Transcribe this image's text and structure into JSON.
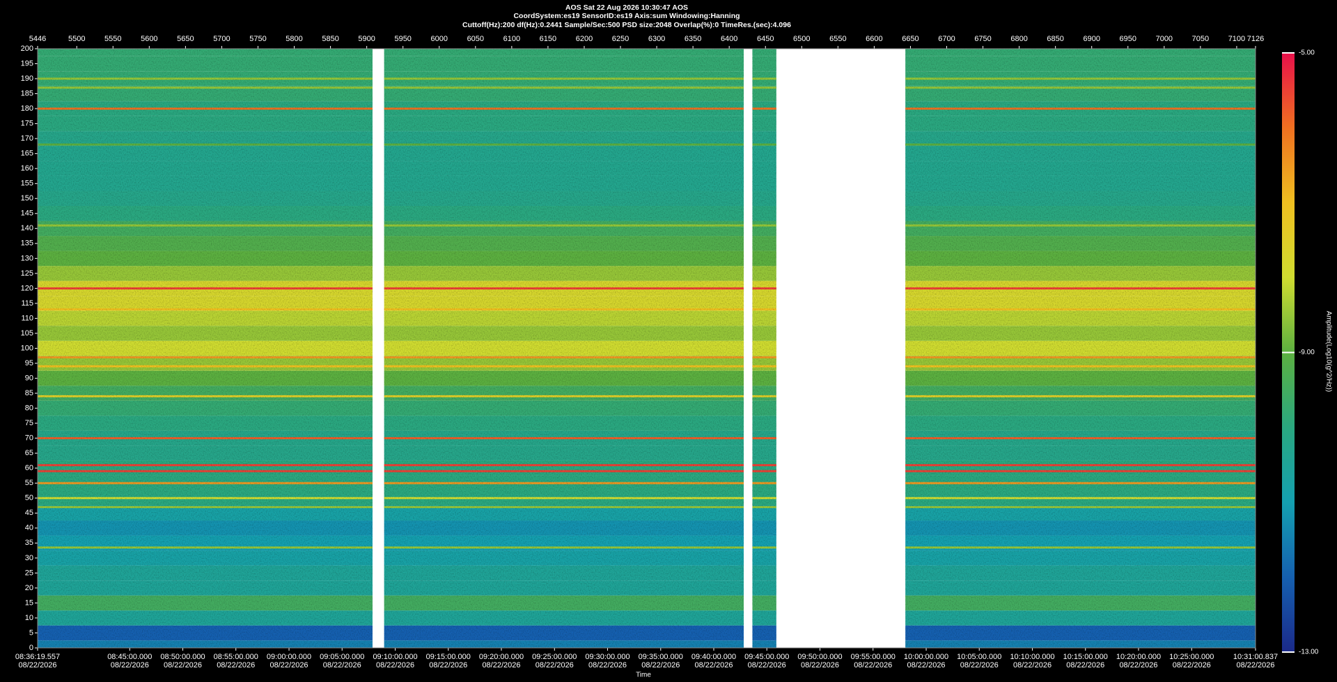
{
  "chart_data": {
    "type": "spectrogram",
    "title": "AOS  Sat 22 Aug 2026 10:30:47  AOS",
    "subtitle": "CoordSystem:es19   SensorID:es19   Axis:sum   Windowing:Hanning",
    "info": "Cuttoff(Hz):200      df(Hz):0.2441      Sample/Sec:500      PSD size:2048      Overlap(%):0      TimeRes.(sec):4.096",
    "xlabel": "Time",
    "colorbar_label": "Amplitude(Log10(g^2/Hz))",
    "xlim": [
      5446,
      7126
    ],
    "x2ticks": [
      5446,
      5500,
      5550,
      5600,
      5650,
      5700,
      5750,
      5800,
      5850,
      5900,
      5950,
      6000,
      6050,
      6100,
      6150,
      6200,
      6250,
      6300,
      6350,
      6400,
      6450,
      6500,
      6550,
      6600,
      6650,
      6700,
      6750,
      6800,
      6850,
      6900,
      6950,
      7000,
      7050,
      7100,
      7126
    ],
    "xticks": [
      {
        "value": 5446,
        "label": "08:36:19.557",
        "date": "08/22/2026"
      },
      {
        "value": 5573.1,
        "label": "08:45:00.000",
        "date": "08/22/2026"
      },
      {
        "value": 5646.3,
        "label": "08:50:00.000",
        "date": "08/22/2026"
      },
      {
        "value": 5719.5,
        "label": "08:55:00.000",
        "date": "08/22/2026"
      },
      {
        "value": 5792.8,
        "label": "09:00:00.000",
        "date": "08/22/2026"
      },
      {
        "value": 5866.0,
        "label": "09:05:00.000",
        "date": "08/22/2026"
      },
      {
        "value": 5939.3,
        "label": "09:10:00.000",
        "date": "08/22/2026"
      },
      {
        "value": 6012.5,
        "label": "09:15:00.000",
        "date": "08/22/2026"
      },
      {
        "value": 6085.7,
        "label": "09:20:00.000",
        "date": "08/22/2026"
      },
      {
        "value": 6159.0,
        "label": "09:25:00.000",
        "date": "08/22/2026"
      },
      {
        "value": 6232.2,
        "label": "09:30:00.000",
        "date": "08/22/2026"
      },
      {
        "value": 6305.5,
        "label": "09:35:00.000",
        "date": "08/22/2026"
      },
      {
        "value": 6378.7,
        "label": "09:40:00.000",
        "date": "08/22/2026"
      },
      {
        "value": 6451.9,
        "label": "09:45:00.000",
        "date": "08/22/2026"
      },
      {
        "value": 6525.2,
        "label": "09:50:00.000",
        "date": "08/22/2026"
      },
      {
        "value": 6598.4,
        "label": "09:55:00.000",
        "date": "08/22/2026"
      },
      {
        "value": 6671.7,
        "label": "10:00:00.000",
        "date": "08/22/2026"
      },
      {
        "value": 6744.9,
        "label": "10:05:00.000",
        "date": "08/22/2026"
      },
      {
        "value": 6818.2,
        "label": "10:10:00.000",
        "date": "08/22/2026"
      },
      {
        "value": 6891.4,
        "label": "10:15:00.000",
        "date": "08/22/2026"
      },
      {
        "value": 6964.6,
        "label": "10:20:00.000",
        "date": "08/22/2026"
      },
      {
        "value": 7037.9,
        "label": "10:25:00.000",
        "date": "08/22/2026"
      },
      {
        "value": 7126,
        "label": "10:31:00.837",
        "date": "08/22/2026"
      }
    ],
    "ylim": [
      0,
      200
    ],
    "yticks": [
      0,
      5,
      10,
      15,
      20,
      25,
      30,
      35,
      40,
      45,
      50,
      55,
      60,
      65,
      70,
      75,
      80,
      85,
      90,
      95,
      100,
      105,
      110,
      115,
      120,
      125,
      130,
      135,
      140,
      145,
      150,
      155,
      160,
      165,
      170,
      175,
      180,
      185,
      190,
      195,
      200
    ],
    "clim": [
      -13,
      -5
    ],
    "cticks": [
      {
        "value": -5,
        "label": "-5.00"
      },
      {
        "value": -9,
        "label": "-9.00"
      },
      {
        "value": -13,
        "label": "-13.00"
      }
    ],
    "colormap": [
      "#1b2a8a",
      "#1560b0",
      "#14a0b0",
      "#2aa880",
      "#5cb040",
      "#d0dc30",
      "#f0c020",
      "#f07020",
      "#e8104a"
    ],
    "segments": [
      {
        "start": 5446,
        "end": 5908
      },
      {
        "start": 5924,
        "end": 6420
      },
      {
        "start": 6432,
        "end": 6465
      },
      {
        "start": 6643,
        "end": 7126
      }
    ],
    "frequencies": [
      0,
      5,
      10,
      15,
      20,
      25,
      30,
      35,
      40,
      45,
      50,
      55,
      60,
      65,
      70,
      75,
      80,
      85,
      90,
      95,
      100,
      105,
      110,
      115,
      120,
      125,
      130,
      135,
      140,
      145,
      150,
      155,
      160,
      165,
      170,
      175,
      180,
      185,
      190,
      195,
      200
    ],
    "amplitude": [
      -11.5,
      -12,
      -10.5,
      -9.5,
      -10.5,
      -10.5,
      -10.8,
      -11,
      -11.2,
      -10.8,
      -10,
      -10,
      -10,
      -10.2,
      -10.2,
      -10,
      -9.8,
      -9.5,
      -9,
      -8.5,
      -8,
      -8.5,
      -8.2,
      -7.8,
      -7.8,
      -8.5,
      -9,
      -9.2,
      -9.5,
      -10,
      -10.2,
      -10.3,
      -10.3,
      -10.3,
      -10.2,
      -10,
      -10,
      -9.8,
      -9.8,
      -9.8,
      -9.8
    ],
    "lines": [
      {
        "frequency": 180,
        "amplitude": -6
      },
      {
        "frequency": 120,
        "amplitude": -5.5
      },
      {
        "frequency": 113,
        "amplitude": -7
      },
      {
        "frequency": 97,
        "amplitude": -6.5
      },
      {
        "frequency": 94,
        "amplitude": -7
      },
      {
        "frequency": 84,
        "amplitude": -7.5
      },
      {
        "frequency": 70,
        "amplitude": -5.8
      },
      {
        "frequency": 61,
        "amplitude": -5.5
      },
      {
        "frequency": 59,
        "amplitude": -5.5
      },
      {
        "frequency": 55,
        "amplitude": -6.5
      },
      {
        "frequency": 50,
        "amplitude": -8
      },
      {
        "frequency": 47,
        "amplitude": -8.5
      },
      {
        "frequency": 33.5,
        "amplitude": -8.5
      },
      {
        "frequency": 141,
        "amplitude": -8.5
      },
      {
        "frequency": 190,
        "amplitude": -8.5
      },
      {
        "frequency": 187,
        "amplitude": -8.5
      },
      {
        "frequency": 168,
        "amplitude": -9
      }
    ]
  }
}
